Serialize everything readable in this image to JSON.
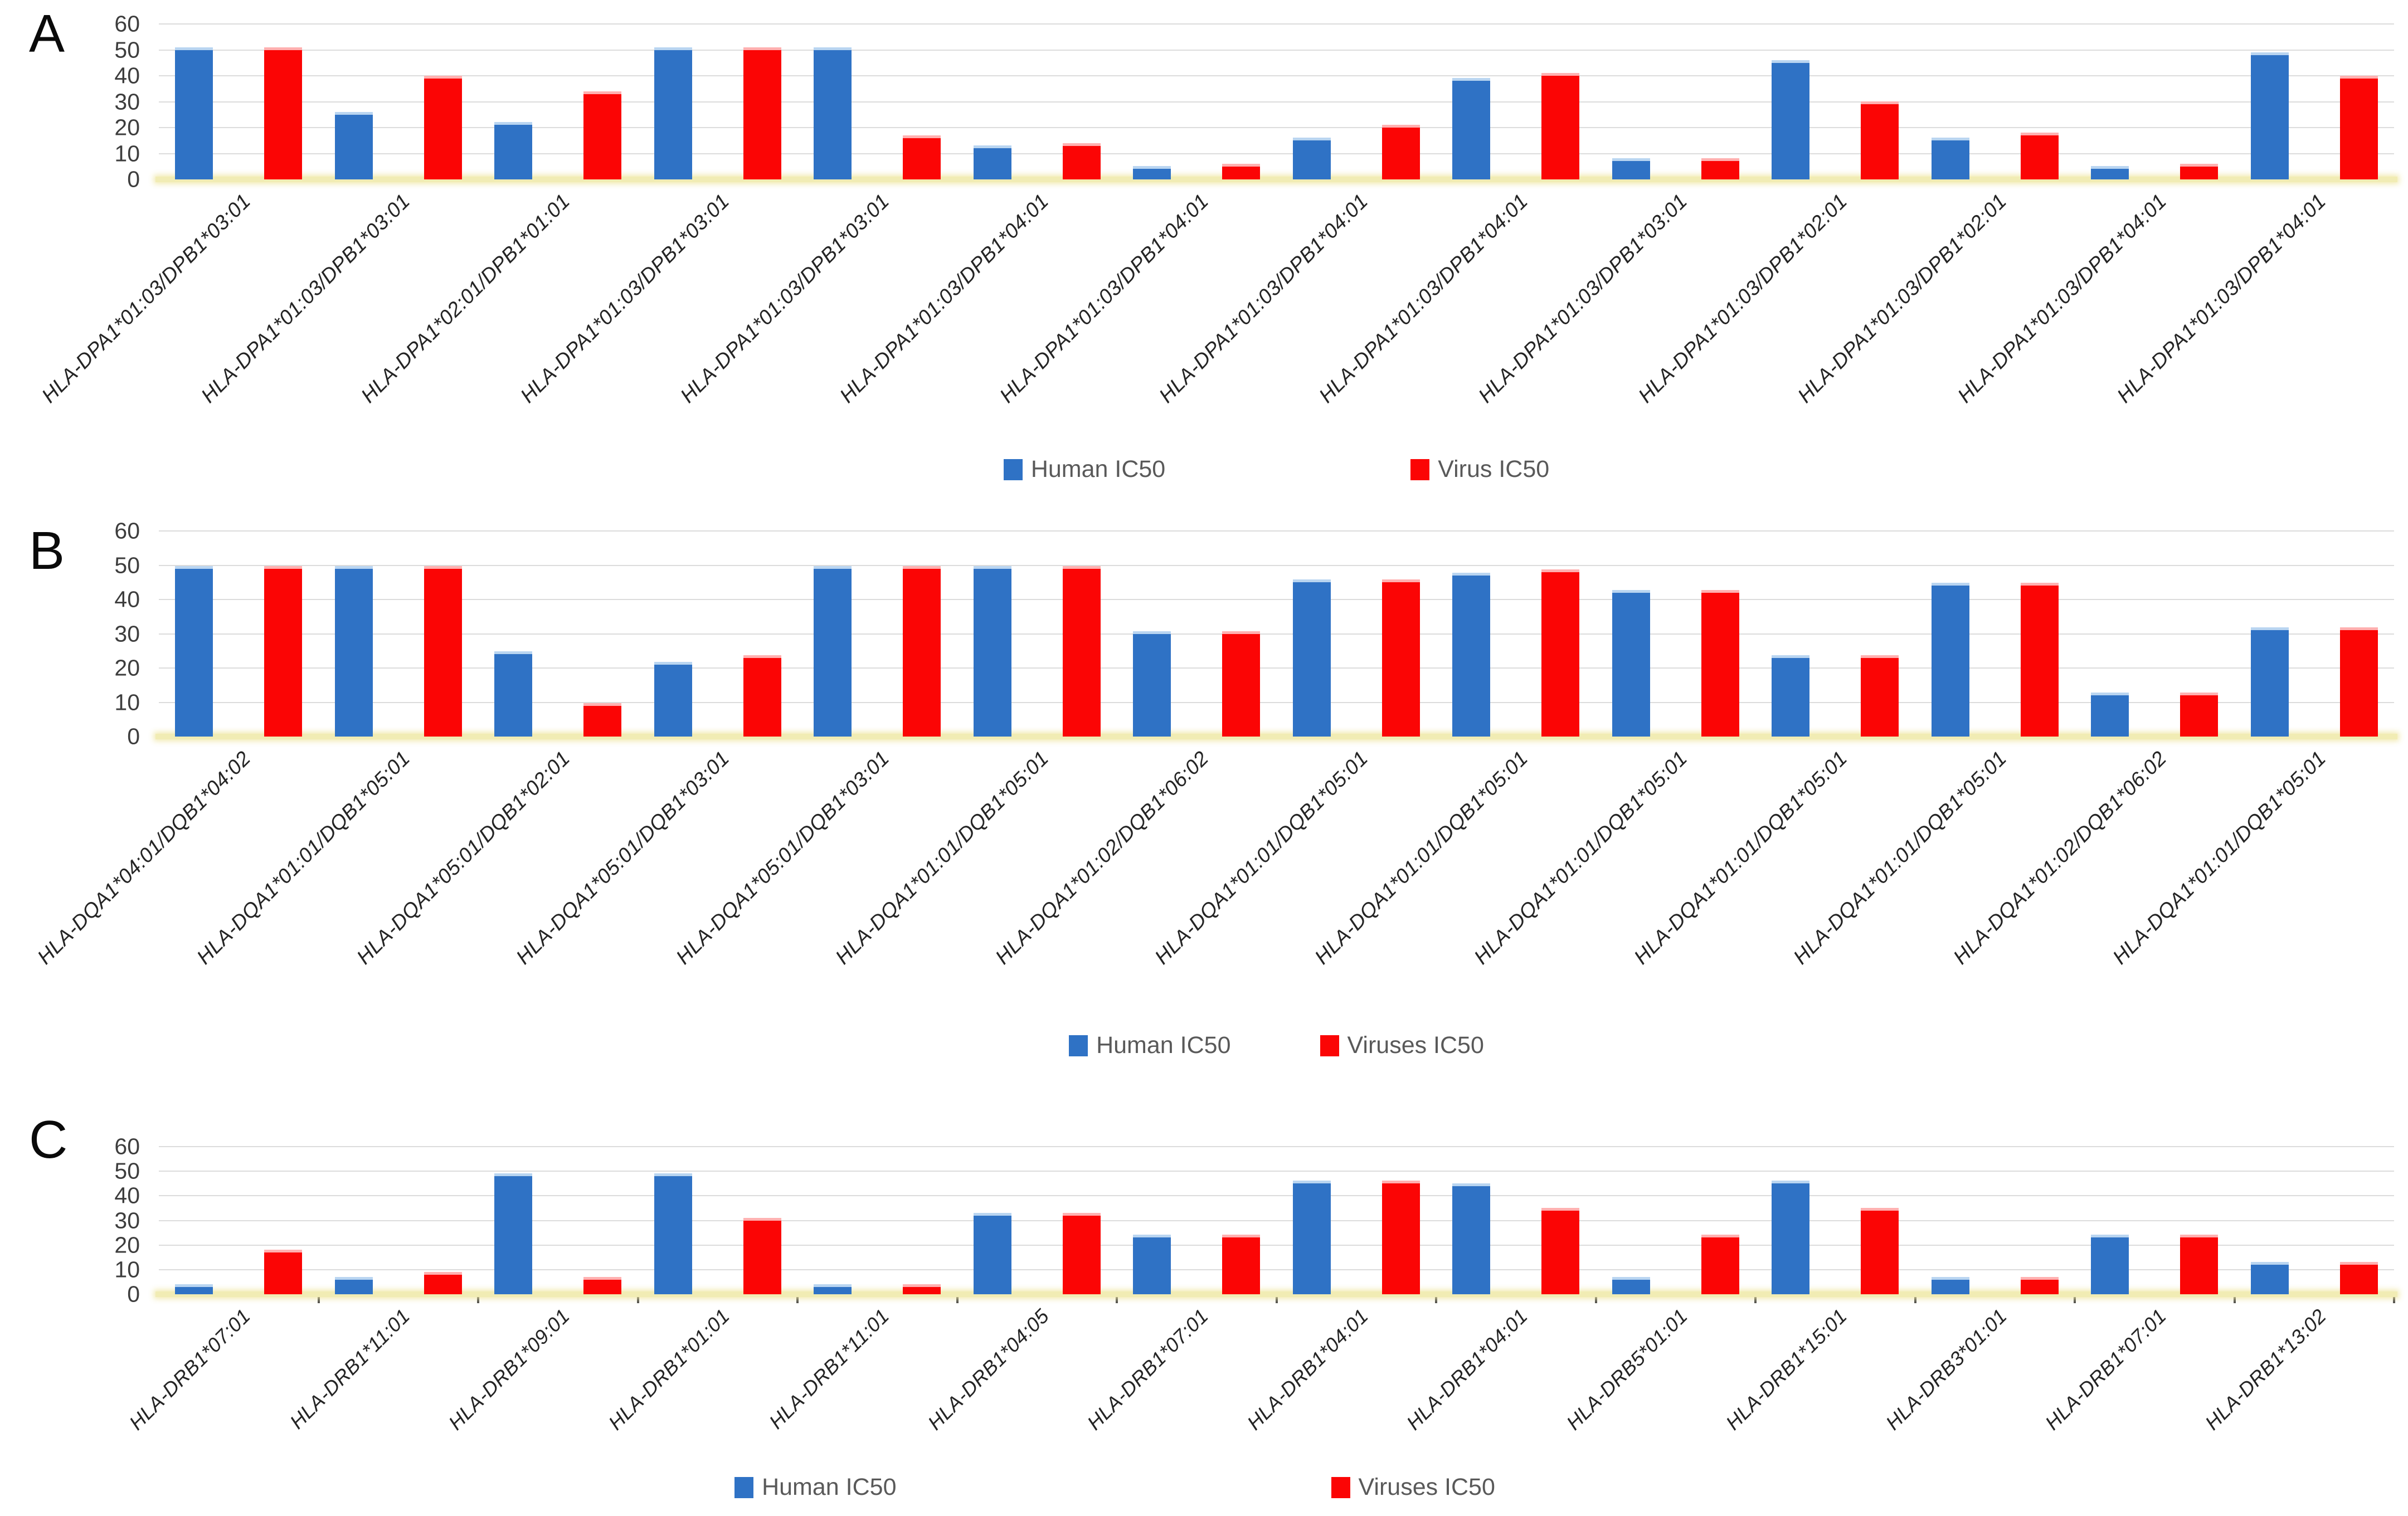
{
  "figure": {
    "description": "Three stacked clustered bar charts comparing human and viral IC50 values across HLA class II alleles",
    "background": "#ffffff"
  },
  "colors": {
    "human": "#2f72c5",
    "human_cap": "#b9d5f1",
    "virus": "#fb0505",
    "virus_cap": "#ffb0b0",
    "gridline": "#dcdcdc",
    "baseline": "#f1ecb4",
    "tick_text": "#3d3d3d",
    "label_text": "#242424",
    "legend_text": "#595959"
  },
  "chart_data": [
    {
      "type": "bar",
      "panel": "A",
      "ylim": [
        0,
        60
      ],
      "yticks": [
        0,
        10,
        20,
        30,
        40,
        50,
        60
      ],
      "grid": true,
      "legend_position": "bottom",
      "axis_tick_marks": false,
      "categories": [
        "HLA-DPA1*01:03/DPB1*03:01",
        "HLA-DPA1*01:03/DPB1*03:01",
        "HLA-DPA1*02:01/DPB1*01:01",
        "HLA-DPA1*01:03/DPB1*03:01",
        "HLA-DPA1*01:03/DPB1*03:01",
        "HLA-DPA1*01:03/DPB1*04:01",
        "HLA-DPA1*01:03/DPB1*04:01",
        "HLA-DPA1*01:03/DPB1*04:01",
        "HLA-DPA1*01:03/DPB1*04:01",
        "HLA-DPA1*01:03/DPB1*03:01",
        "HLA-DPA1*01:03/DPB1*02:01",
        "HLA-DPA1*01:03/DPB1*02:01",
        "HLA-DPA1*01:03/DPB1*04:01",
        "HLA-DPA1*01:03/DPB1*04:01"
      ],
      "series": [
        {
          "name": "Human IC50",
          "color_key": "human",
          "values": [
            50,
            25,
            21,
            50,
            50,
            12,
            4,
            15,
            38,
            7,
            45,
            15,
            4,
            48
          ]
        },
        {
          "name": "Virus IC50",
          "color_key": "virus",
          "values": [
            50,
            39,
            33,
            50,
            16,
            13,
            5,
            20,
            40,
            7,
            29,
            17,
            5,
            39
          ]
        }
      ]
    },
    {
      "type": "bar",
      "panel": "B",
      "ylim": [
        0,
        60
      ],
      "yticks": [
        0,
        10,
        20,
        30,
        40,
        50,
        60
      ],
      "grid": true,
      "legend_position": "bottom",
      "axis_tick_marks": false,
      "categories": [
        "HLA-DQA1*04:01/DQB1*04:02",
        "HLA-DQA1*01:01/DQB1*05:01",
        "HLA-DQA1*05:01/DQB1*02:01",
        "HLA-DQA1*05:01/DQB1*03:01",
        "HLA-DQA1*05:01/DQB1*03:01",
        "HLA-DQA1*01:01/DQB1*05:01",
        "HLA-DQA1*01:02/DQB1*06:02",
        "HLA-DQA1*01:01/DQB1*05:01",
        "HLA-DQA1*01:01/DQB1*05:01",
        "HLA-DQA1*01:01/DQB1*05:01",
        "HLA-DQA1*01:01/DQB1*05:01",
        "HLA-DQA1*01:01/DQB1*05:01",
        "HLA-DQA1*01:02/DQB1*06:02",
        "HLA-DQA1*01:01/DQB1*05:01"
      ],
      "series": [
        {
          "name": "Human IC50",
          "color_key": "human",
          "values": [
            49,
            49,
            24,
            21,
            49,
            49,
            30,
            45,
            47,
            42,
            23,
            44,
            12,
            31
          ]
        },
        {
          "name": "Viruses IC50",
          "color_key": "virus",
          "values": [
            49,
            49,
            9,
            23,
            49,
            49,
            30,
            45,
            48,
            42,
            23,
            44,
            12,
            31
          ]
        }
      ]
    },
    {
      "type": "bar",
      "panel": "C",
      "ylim": [
        0,
        60
      ],
      "yticks": [
        0,
        10,
        20,
        30,
        40,
        50,
        60
      ],
      "grid": true,
      "legend_position": "bottom",
      "axis_tick_marks": true,
      "categories": [
        "HLA-DRB1*07:01",
        "HLA-DRB1*11:01",
        "HLA-DRB1*09:01",
        "HLA-DRB1*01:01",
        "HLA-DRB1*11:01",
        "HLA-DRB1*04:05",
        "HLA-DRB1*07:01",
        "HLA-DRB1*04:01",
        "HLA-DRB1*04:01",
        "HLA-DRB5*01:01",
        "HLA-DRB1*15:01",
        "HLA-DRB3*01:01",
        "HLA-DRB1*07:01",
        "HLA-DRB1*13:02"
      ],
      "series": [
        {
          "name": "Human IC50",
          "color_key": "human",
          "values": [
            3,
            6,
            48,
            48,
            3,
            32,
            23,
            45,
            44,
            6,
            45,
            6,
            23,
            12
          ]
        },
        {
          "name": "Viruses IC50",
          "color_key": "virus",
          "values": [
            17,
            8,
            6,
            30,
            3,
            32,
            23,
            45,
            34,
            23,
            34,
            6,
            23,
            12
          ]
        }
      ]
    }
  ]
}
